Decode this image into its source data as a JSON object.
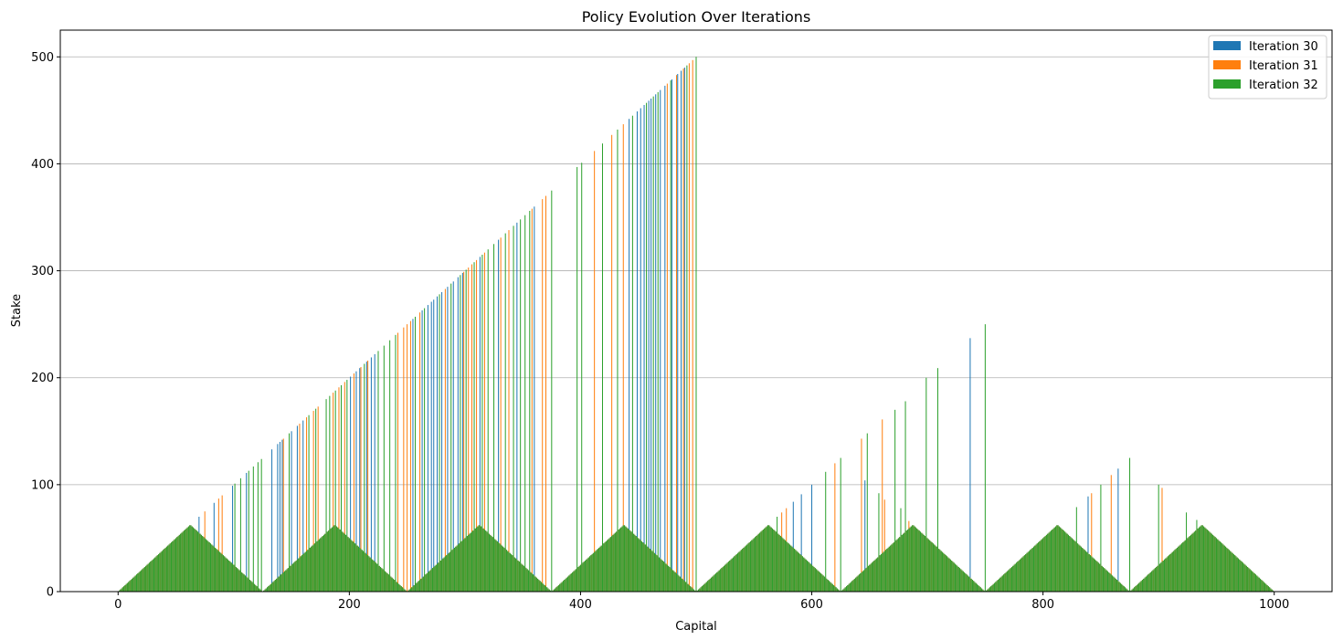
{
  "chart_data": {
    "type": "bar",
    "title": "Policy Evolution Over Iterations",
    "xlabel": "Capital",
    "ylabel": "Stake",
    "xlim": [
      -50,
      1050
    ],
    "ylim": [
      0,
      525
    ],
    "x_ticks": [
      0,
      200,
      400,
      600,
      800,
      1000
    ],
    "y_ticks": [
      0,
      100,
      200,
      300,
      400,
      500
    ],
    "grid": "y-major",
    "legend_position": "top-right",
    "capital_range": [
      1,
      999
    ],
    "base_pattern": {
      "description": "stake = min(x mod 125, 125 - x mod 125)",
      "period": 125
    },
    "series": [
      {
        "name": "Iteration 30",
        "color": "#1f77b4",
        "spikes": [
          [
            70,
            70
          ],
          [
            83,
            83
          ],
          [
            99,
            99
          ],
          [
            111,
            111
          ],
          [
            133,
            133
          ],
          [
            138,
            138
          ],
          [
            140,
            140
          ],
          [
            142,
            142
          ],
          [
            150,
            150
          ],
          [
            155,
            155
          ],
          [
            160,
            160
          ],
          [
            201,
            201
          ],
          [
            206,
            206
          ],
          [
            209,
            209
          ],
          [
            215,
            215
          ],
          [
            219,
            219
          ],
          [
            222,
            222
          ],
          [
            255,
            255
          ],
          [
            263,
            263
          ],
          [
            268,
            268
          ],
          [
            271,
            271
          ],
          [
            273,
            273
          ],
          [
            276,
            276
          ],
          [
            280,
            280
          ],
          [
            285,
            285
          ],
          [
            290,
            290
          ],
          [
            294,
            294
          ],
          [
            298,
            298
          ],
          [
            313,
            313
          ],
          [
            329,
            329
          ],
          [
            345,
            345
          ],
          [
            360,
            360
          ],
          [
            442,
            442
          ],
          [
            449,
            449
          ],
          [
            452,
            452
          ],
          [
            455,
            455
          ],
          [
            459,
            459
          ],
          [
            461,
            461
          ],
          [
            465,
            465
          ],
          [
            469,
            469
          ],
          [
            473,
            473
          ],
          [
            479,
            479
          ],
          [
            484,
            484
          ],
          [
            487,
            487
          ],
          [
            490,
            490
          ],
          [
            584,
            84
          ],
          [
            591,
            91
          ],
          [
            600,
            100
          ],
          [
            646,
            104
          ],
          [
            737,
            237
          ],
          [
            839,
            89
          ],
          [
            865,
            115
          ]
        ]
      },
      {
        "name": "Iteration 31",
        "color": "#ff7f0e",
        "spikes": [
          [
            60,
            60
          ],
          [
            75,
            75
          ],
          [
            87,
            87
          ],
          [
            90,
            90
          ],
          [
            143,
            143
          ],
          [
            157,
            157
          ],
          [
            163,
            163
          ],
          [
            169,
            169
          ],
          [
            173,
            173
          ],
          [
            186,
            186
          ],
          [
            191,
            191
          ],
          [
            196,
            196
          ],
          [
            204,
            204
          ],
          [
            210,
            210
          ],
          [
            216,
            216
          ],
          [
            242,
            242
          ],
          [
            247,
            247
          ],
          [
            250,
            250
          ],
          [
            253,
            253
          ],
          [
            261,
            261
          ],
          [
            283,
            283
          ],
          [
            299,
            299
          ],
          [
            303,
            303
          ],
          [
            306,
            306
          ],
          [
            310,
            310
          ],
          [
            317,
            317
          ],
          [
            331,
            331
          ],
          [
            338,
            338
          ],
          [
            358,
            358
          ],
          [
            367,
            367
          ],
          [
            370,
            370
          ],
          [
            412,
            412
          ],
          [
            427,
            427
          ],
          [
            437,
            437
          ],
          [
            475,
            475
          ],
          [
            483,
            483
          ],
          [
            489,
            489
          ],
          [
            494,
            494
          ],
          [
            497,
            497
          ],
          [
            574,
            74
          ],
          [
            578,
            78
          ],
          [
            620,
            120
          ],
          [
            643,
            143
          ],
          [
            661,
            161
          ],
          [
            663,
            86
          ],
          [
            684,
            66
          ],
          [
            842,
            92
          ],
          [
            859,
            109
          ],
          [
            903,
            97
          ]
        ]
      },
      {
        "name": "Iteration 32",
        "color": "#2ca02c",
        "spikes": [
          [
            101,
            101
          ],
          [
            106,
            106
          ],
          [
            113,
            113
          ],
          [
            117,
            117
          ],
          [
            121,
            121
          ],
          [
            124,
            124
          ],
          [
            148,
            148
          ],
          [
            165,
            165
          ],
          [
            171,
            171
          ],
          [
            180,
            180
          ],
          [
            183,
            183
          ],
          [
            188,
            188
          ],
          [
            193,
            193
          ],
          [
            198,
            198
          ],
          [
            213,
            213
          ],
          [
            225,
            225
          ],
          [
            230,
            230
          ],
          [
            235,
            235
          ],
          [
            240,
            240
          ],
          [
            257,
            257
          ],
          [
            265,
            265
          ],
          [
            278,
            278
          ],
          [
            288,
            288
          ],
          [
            296,
            296
          ],
          [
            301,
            301
          ],
          [
            308,
            308
          ],
          [
            315,
            315
          ],
          [
            320,
            320
          ],
          [
            325,
            325
          ],
          [
            335,
            335
          ],
          [
            342,
            342
          ],
          [
            348,
            348
          ],
          [
            352,
            352
          ],
          [
            356,
            356
          ],
          [
            375,
            375
          ],
          [
            397,
            397
          ],
          [
            401,
            401
          ],
          [
            419,
            419
          ],
          [
            432,
            432
          ],
          [
            445,
            445
          ],
          [
            457,
            457
          ],
          [
            463,
            463
          ],
          [
            467,
            467
          ],
          [
            478,
            478
          ],
          [
            492,
            492
          ],
          [
            500,
            500
          ],
          [
            570,
            70
          ],
          [
            612,
            112
          ],
          [
            625,
            125
          ],
          [
            648,
            148
          ],
          [
            658,
            92
          ],
          [
            672,
            170
          ],
          [
            677,
            78
          ],
          [
            681,
            178
          ],
          [
            699,
            200
          ],
          [
            709,
            209
          ],
          [
            750,
            250
          ],
          [
            829,
            79
          ],
          [
            850,
            100
          ],
          [
            875,
            125
          ],
          [
            900,
            100
          ],
          [
            924,
            74
          ],
          [
            933,
            67
          ]
        ]
      }
    ]
  }
}
